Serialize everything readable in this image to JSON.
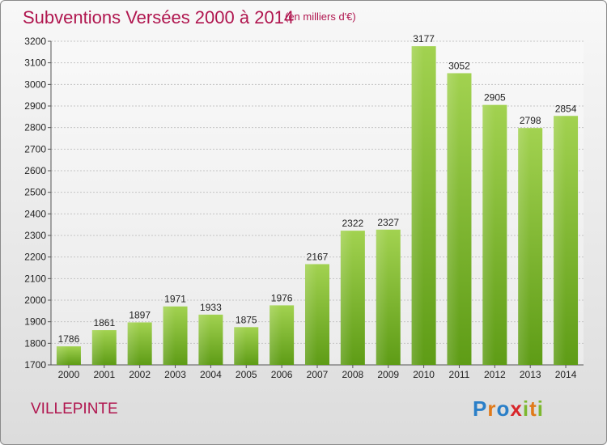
{
  "chart_data": {
    "type": "bar",
    "title": "Subventions Versées 2000 à 2014",
    "subtitle": "(en milliers d'€)",
    "categories": [
      "2000",
      "2001",
      "2002",
      "2003",
      "2004",
      "2005",
      "2006",
      "2007",
      "2008",
      "2009",
      "2010",
      "2011",
      "2012",
      "2013",
      "2014"
    ],
    "values": [
      1786,
      1861,
      1897,
      1971,
      1933,
      1875,
      1976,
      2167,
      2322,
      2327,
      3177,
      3052,
      2905,
      2798,
      2854
    ],
    "ylim": [
      1700,
      3200
    ],
    "yticks": [
      1700,
      1800,
      1900,
      2000,
      2100,
      2200,
      2300,
      2400,
      2500,
      2600,
      2700,
      2800,
      2900,
      3000,
      3100,
      3200
    ],
    "grid": true,
    "bar_color": "#7cb82f"
  },
  "footer": {
    "town": "VILLEPINTE",
    "logo_letters": [
      "P",
      "r",
      "o",
      "x",
      "i",
      "t",
      "i"
    ],
    "logo_colors": [
      "#2a7fc8",
      "#e07a1a",
      "#2a7fc8",
      "#d8262b",
      "#7cb82f",
      "#e07a1a",
      "#7cb82f"
    ]
  }
}
